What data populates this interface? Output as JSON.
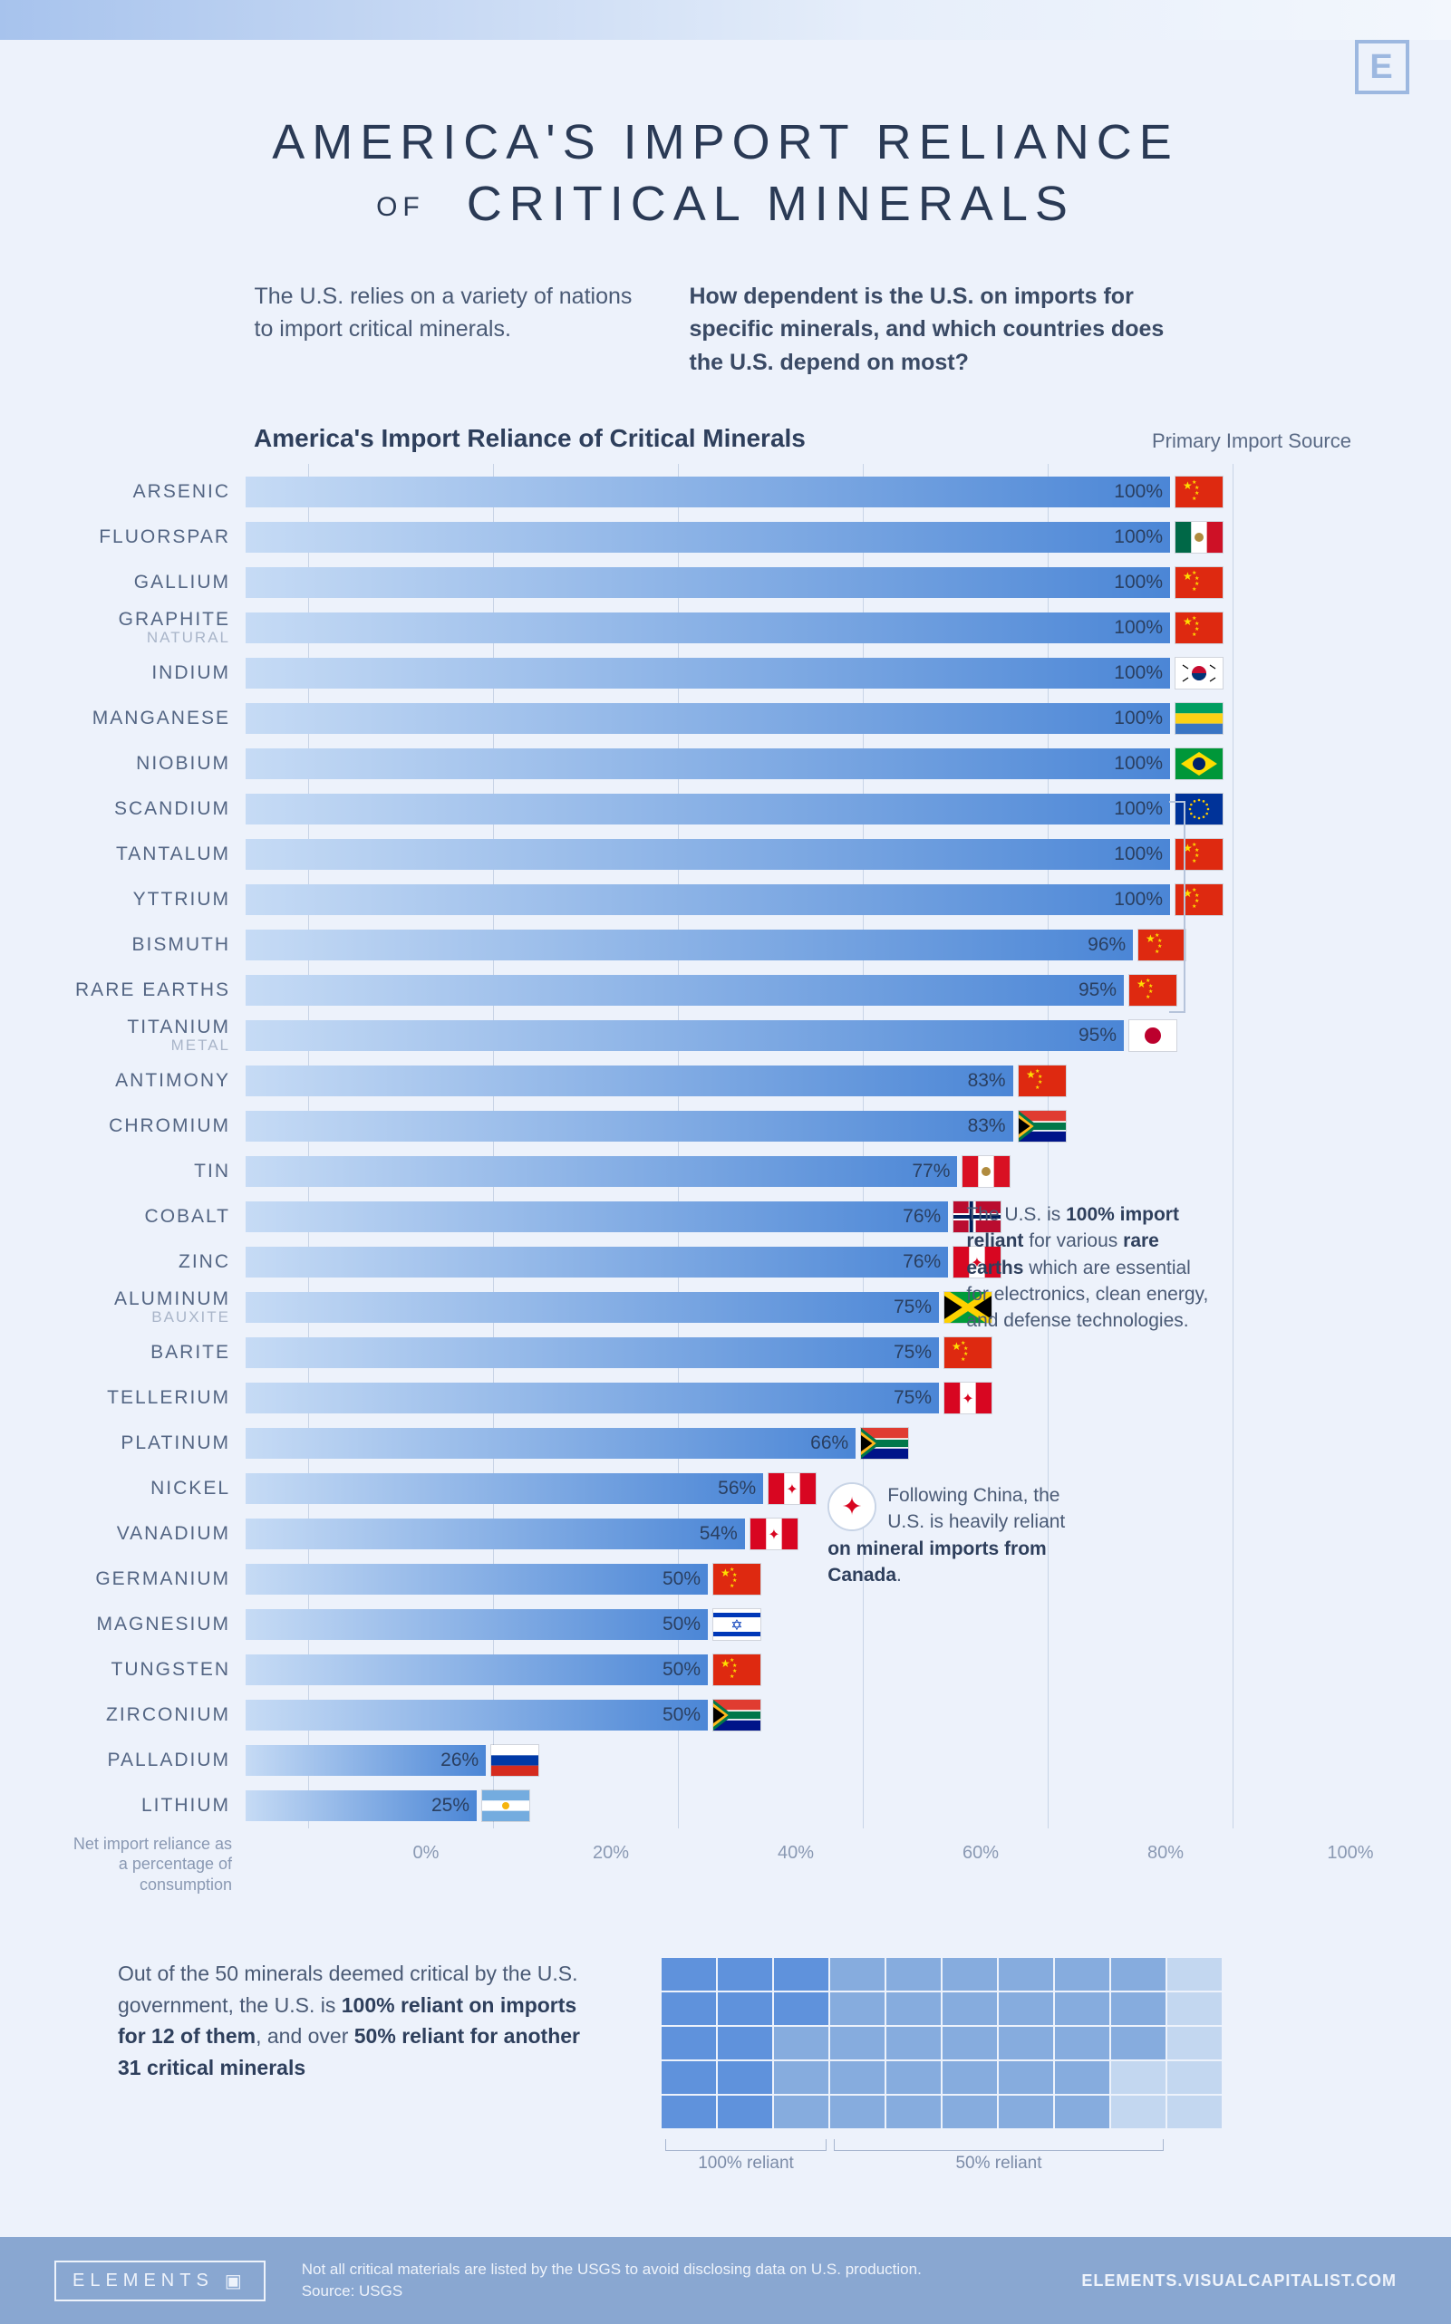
{
  "brand_logo_letter": "E",
  "title_line1_a": "AMERICA'S IMPORT RELIANCE",
  "title_line2_small": "OF",
  "title_line2_b": "CRITICAL MINERALS",
  "subhead_left": "The U.S. relies on a variety of nations to import critical minerals.",
  "subhead_right": "How dependent is the U.S. on imports for specific minerals, and which countries does the U.S. depend on most?",
  "chart_title": "America's Import Reliance of Critical Minerals",
  "legend_label": "Primary Import Source",
  "axis_note": "Net import reliance as a percentage of consumption",
  "axis_ticks": [
    "0%",
    "20%",
    "40%",
    "60%",
    "80%",
    "100%"
  ],
  "bar_gradient_from": "#c6dbf5",
  "bar_gradient_to": "#4b86d6",
  "grid_color": "#c8d4e6",
  "background_color": "#edf2fb",
  "label_color": "#546684",
  "pct_color": "#2a3f60",
  "minerals": [
    {
      "name": "ARSENIC",
      "sub": "",
      "pct": 100,
      "flag": "china"
    },
    {
      "name": "FLUORSPAR",
      "sub": "",
      "pct": 100,
      "flag": "mexico"
    },
    {
      "name": "GALLIUM",
      "sub": "",
      "pct": 100,
      "flag": "china"
    },
    {
      "name": "GRAPHITE",
      "sub": "NATURAL",
      "pct": 100,
      "flag": "china"
    },
    {
      "name": "INDIUM",
      "sub": "",
      "pct": 100,
      "flag": "skorea"
    },
    {
      "name": "MANGANESE",
      "sub": "",
      "pct": 100,
      "flag": "gabon"
    },
    {
      "name": "NIOBIUM",
      "sub": "",
      "pct": 100,
      "flag": "brazil"
    },
    {
      "name": "SCANDIUM",
      "sub": "",
      "pct": 100,
      "flag": "eu"
    },
    {
      "name": "TANTALUM",
      "sub": "",
      "pct": 100,
      "flag": "china"
    },
    {
      "name": "YTTRIUM",
      "sub": "",
      "pct": 100,
      "flag": "china"
    },
    {
      "name": "BISMUTH",
      "sub": "",
      "pct": 96,
      "flag": "china"
    },
    {
      "name": "RARE EARTHS",
      "sub": "",
      "pct": 95,
      "flag": "china"
    },
    {
      "name": "TITANIUM",
      "sub": "METAL",
      "pct": 95,
      "flag": "japan"
    },
    {
      "name": "ANTIMONY",
      "sub": "",
      "pct": 83,
      "flag": "china"
    },
    {
      "name": "CHROMIUM",
      "sub": "",
      "pct": 83,
      "flag": "southafrica"
    },
    {
      "name": "TIN",
      "sub": "",
      "pct": 77,
      "flag": "peru"
    },
    {
      "name": "COBALT",
      "sub": "",
      "pct": 76,
      "flag": "norway"
    },
    {
      "name": "ZINC",
      "sub": "",
      "pct": 76,
      "flag": "canada"
    },
    {
      "name": "ALUMINUM",
      "sub": "BAUXITE",
      "pct": 75,
      "flag": "jamaica"
    },
    {
      "name": "BARITE",
      "sub": "",
      "pct": 75,
      "flag": "china"
    },
    {
      "name": "TELLERIUM",
      "sub": "",
      "pct": 75,
      "flag": "canada"
    },
    {
      "name": "PLATINUM",
      "sub": "",
      "pct": 66,
      "flag": "southafrica"
    },
    {
      "name": "NICKEL",
      "sub": "",
      "pct": 56,
      "flag": "canada"
    },
    {
      "name": "VANADIUM",
      "sub": "",
      "pct": 54,
      "flag": "canada"
    },
    {
      "name": "GERMANIUM",
      "sub": "",
      "pct": 50,
      "flag": "china"
    },
    {
      "name": "MAGNESIUM",
      "sub": "",
      "pct": 50,
      "flag": "israel"
    },
    {
      "name": "TUNGSTEN",
      "sub": "",
      "pct": 50,
      "flag": "china"
    },
    {
      "name": "ZIRCONIUM",
      "sub": "",
      "pct": 50,
      "flag": "southafrica"
    },
    {
      "name": "PALLADIUM",
      "sub": "",
      "pct": 26,
      "flag": "russia"
    },
    {
      "name": "LITHIUM",
      "sub": "",
      "pct": 25,
      "flag": "argentina"
    }
  ],
  "callout_rare_earths_html": "The U.S. is <b>100% import reliant</b> for various <b>rare earths</b> which are essential for electronics, clean energy, and defense technologies.",
  "callout_canada_html": "Following China, the U.S. is heavily reliant <b>on mineral imports from Canada</b>.",
  "summary_text_html": "Out of the 50 minerals deemed critical by the U.S. government, the U.S. is <b>100% reliant on imports for 12 of them</b>, and over <b>50% reliant for another 31 critical minerals</b>",
  "waffle": {
    "cols": 10,
    "rows": 5,
    "total": 50,
    "full_count": 12,
    "over50_count": 31,
    "colors": {
      "full": "#5f92dc",
      "over50": "#86acde",
      "rest": "#c3d7f0"
    },
    "labels": {
      "full": "100% reliant",
      "over50": "50% reliant"
    }
  },
  "footer": {
    "brand": "ELEMENTS",
    "note_line1": "Not all critical materials are listed by the USGS to avoid disclosing data on U.S. production.",
    "note_line2": "Source: USGS",
    "url": "ELEMENTS.VISUALCAPITALIST.COM"
  },
  "flags": {
    "china": {
      "bg": "#de2910",
      "detail": "stars_cn"
    },
    "mexico": {
      "type": "tricolor_v",
      "c": [
        "#006847",
        "#ffffff",
        "#ce1126"
      ],
      "emblem": "#b08b3e"
    },
    "skorea": {
      "bg": "#ffffff",
      "detail": "taegeuk"
    },
    "gabon": {
      "type": "tricolor_h",
      "c": [
        "#009e60",
        "#fcd116",
        "#3a75c4"
      ]
    },
    "brazil": {
      "bg": "#009739",
      "detail": "brazil"
    },
    "eu": {
      "bg": "#003399",
      "detail": "eu_stars"
    },
    "japan": {
      "bg": "#ffffff",
      "detail": "japan"
    },
    "southafrica": {
      "detail": "southafrica"
    },
    "peru": {
      "type": "tricolor_v",
      "c": [
        "#d91023",
        "#ffffff",
        "#d91023"
      ],
      "emblem": "#b08b3e"
    },
    "norway": {
      "detail": "norway"
    },
    "canada": {
      "type": "tricolor_v",
      "c": [
        "#d80621",
        "#ffffff",
        "#d80621"
      ],
      "emblem_leaf": "#d80621"
    },
    "jamaica": {
      "detail": "jamaica"
    },
    "israel": {
      "detail": "israel"
    },
    "russia": {
      "type": "tricolor_h",
      "c": [
        "#ffffff",
        "#0039a6",
        "#d52b1e"
      ]
    },
    "argentina": {
      "type": "tricolor_h",
      "c": [
        "#74acdf",
        "#ffffff",
        "#74acdf"
      ],
      "emblem": "#f6b40e"
    }
  }
}
